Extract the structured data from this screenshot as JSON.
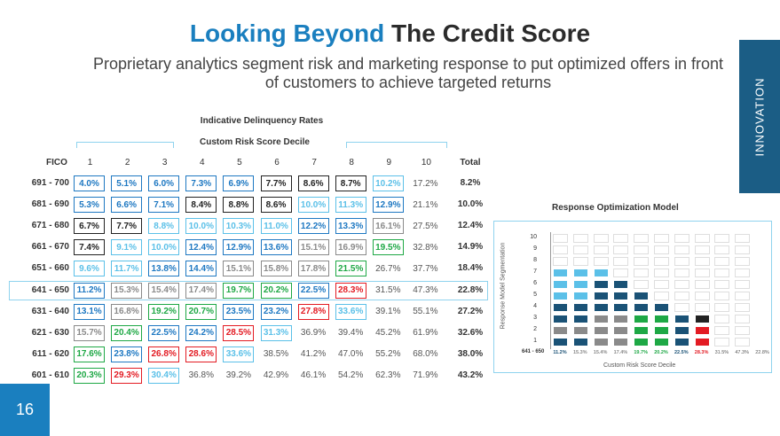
{
  "title": {
    "part1": "Looking Beyond",
    "part2": "The Credit Score"
  },
  "subtitle": "Proprietary analytics segment risk and marketing response to put optimized offers in front of customers to achieve targeted returns",
  "side_tab": "INNOVATION",
  "page_number": "16",
  "colors": {
    "dark_navy": "#1a5276",
    "blue": "#1e78c2",
    "light_blue": "#5bc0e8",
    "black": "#222222",
    "gray": "#8a8a8a",
    "green": "#1ea845",
    "red": "#e31b23",
    "plain": "#555555"
  },
  "table": {
    "heading": "Indicative Delinquency Rates",
    "subheading": "Custom Risk Score Decile",
    "fico_label": "FICO",
    "total_label": "Total",
    "columns": [
      "1",
      "2",
      "3",
      "4",
      "5",
      "6",
      "7",
      "8",
      "9",
      "10"
    ],
    "rows": [
      {
        "fico": "691 - 700",
        "total": "8.2%",
        "cells": [
          [
            "4.0%",
            "blue"
          ],
          [
            "5.1%",
            "blue"
          ],
          [
            "6.0%",
            "blue"
          ],
          [
            "7.3%",
            "blue"
          ],
          [
            "6.9%",
            "blue"
          ],
          [
            "7.7%",
            "black"
          ],
          [
            "8.6%",
            "black"
          ],
          [
            "8.7%",
            "black"
          ],
          [
            "10.2%",
            "light_blue"
          ],
          [
            "17.2%",
            "plain"
          ]
        ]
      },
      {
        "fico": "681 - 690",
        "total": "10.0%",
        "cells": [
          [
            "5.3%",
            "blue"
          ],
          [
            "6.6%",
            "blue"
          ],
          [
            "7.1%",
            "blue"
          ],
          [
            "8.4%",
            "black"
          ],
          [
            "8.8%",
            "black"
          ],
          [
            "8.6%",
            "black"
          ],
          [
            "10.0%",
            "light_blue"
          ],
          [
            "11.3%",
            "light_blue"
          ],
          [
            "12.9%",
            "blue"
          ],
          [
            "21.1%",
            "plain"
          ]
        ]
      },
      {
        "fico": "671 - 680",
        "total": "12.4%",
        "cells": [
          [
            "6.7%",
            "black"
          ],
          [
            "7.7%",
            "black"
          ],
          [
            "8.8%",
            "light_blue"
          ],
          [
            "10.0%",
            "light_blue"
          ],
          [
            "10.3%",
            "light_blue"
          ],
          [
            "11.0%",
            "light_blue"
          ],
          [
            "12.2%",
            "blue"
          ],
          [
            "13.3%",
            "blue"
          ],
          [
            "16.1%",
            "gray"
          ],
          [
            "27.5%",
            "plain"
          ]
        ]
      },
      {
        "fico": "661 - 670",
        "total": "14.9%",
        "cells": [
          [
            "7.4%",
            "black"
          ],
          [
            "9.1%",
            "light_blue"
          ],
          [
            "10.0%",
            "light_blue"
          ],
          [
            "12.4%",
            "blue"
          ],
          [
            "12.9%",
            "blue"
          ],
          [
            "13.6%",
            "blue"
          ],
          [
            "15.1%",
            "gray"
          ],
          [
            "16.9%",
            "gray"
          ],
          [
            "19.5%",
            "green"
          ],
          [
            "32.8%",
            "plain"
          ]
        ]
      },
      {
        "fico": "651 - 660",
        "total": "18.4%",
        "cells": [
          [
            "9.6%",
            "light_blue"
          ],
          [
            "11.7%",
            "light_blue"
          ],
          [
            "13.8%",
            "blue"
          ],
          [
            "14.4%",
            "blue"
          ],
          [
            "15.1%",
            "gray"
          ],
          [
            "15.8%",
            "gray"
          ],
          [
            "17.8%",
            "gray"
          ],
          [
            "21.5%",
            "green"
          ],
          [
            "26.7%",
            "plain"
          ],
          [
            "37.7%",
            "plain"
          ]
        ]
      },
      {
        "fico": "641 - 650",
        "total": "22.8%",
        "cells": [
          [
            "11.2%",
            "blue"
          ],
          [
            "15.3%",
            "gray"
          ],
          [
            "15.4%",
            "gray"
          ],
          [
            "17.4%",
            "gray"
          ],
          [
            "19.7%",
            "green"
          ],
          [
            "20.2%",
            "green"
          ],
          [
            "22.5%",
            "blue"
          ],
          [
            "28.3%",
            "red"
          ],
          [
            "31.5%",
            "plain"
          ],
          [
            "47.3%",
            "plain"
          ]
        ]
      },
      {
        "fico": "631 - 640",
        "total": "27.2%",
        "cells": [
          [
            "13.1%",
            "blue"
          ],
          [
            "16.8%",
            "gray"
          ],
          [
            "19.2%",
            "green"
          ],
          [
            "20.7%",
            "green"
          ],
          [
            "23.5%",
            "blue"
          ],
          [
            "23.2%",
            "blue"
          ],
          [
            "27.8%",
            "red"
          ],
          [
            "33.6%",
            "light_blue"
          ],
          [
            "39.1%",
            "plain"
          ],
          [
            "55.1%",
            "plain"
          ]
        ]
      },
      {
        "fico": "621 - 630",
        "total": "32.6%",
        "cells": [
          [
            "15.7%",
            "gray"
          ],
          [
            "20.4%",
            "green"
          ],
          [
            "22.5%",
            "blue"
          ],
          [
            "24.2%",
            "blue"
          ],
          [
            "28.5%",
            "red"
          ],
          [
            "31.3%",
            "light_blue"
          ],
          [
            "36.9%",
            "plain"
          ],
          [
            "39.4%",
            "plain"
          ],
          [
            "45.2%",
            "plain"
          ],
          [
            "61.9%",
            "plain"
          ]
        ]
      },
      {
        "fico": "611 - 620",
        "total": "38.0%",
        "cells": [
          [
            "17.6%",
            "green"
          ],
          [
            "23.8%",
            "blue"
          ],
          [
            "26.8%",
            "red"
          ],
          [
            "28.6%",
            "red"
          ],
          [
            "33.6%",
            "light_blue"
          ],
          [
            "38.5%",
            "plain"
          ],
          [
            "41.2%",
            "plain"
          ],
          [
            "47.0%",
            "plain"
          ],
          [
            "55.2%",
            "plain"
          ],
          [
            "68.0%",
            "plain"
          ]
        ]
      },
      {
        "fico": "601 - 610",
        "total": "43.2%",
        "cells": [
          [
            "20.3%",
            "green"
          ],
          [
            "29.3%",
            "red"
          ],
          [
            "30.4%",
            "light_blue"
          ],
          [
            "36.8%",
            "plain"
          ],
          [
            "39.2%",
            "plain"
          ],
          [
            "42.9%",
            "plain"
          ],
          [
            "46.1%",
            "plain"
          ],
          [
            "54.2%",
            "plain"
          ],
          [
            "62.3%",
            "plain"
          ],
          [
            "71.9%",
            "plain"
          ]
        ]
      }
    ]
  },
  "response_model": {
    "title": "Response Optimization Model",
    "y_label": "Response Model Segmentation",
    "x_label": "Custom Risk Score Decile",
    "row_label": "641 - 650",
    "y_ticks": [
      "10",
      "9",
      "8",
      "7",
      "6",
      "5",
      "4",
      "3",
      "2",
      "1"
    ],
    "x_values": [
      "11.2%",
      "15.3%",
      "15.4%",
      "17.4%",
      "19.7%",
      "20.2%",
      "22.5%",
      "28.3%",
      "31.5%",
      "47.3%",
      "22.8%"
    ],
    "x_value_colors": [
      "dark_navy",
      "gray",
      "gray",
      "gray",
      "green",
      "green",
      "dark_navy",
      "red",
      "plain",
      "plain",
      "plain"
    ],
    "column_fills": [
      [
        "dark_navy",
        "gray",
        "dark_navy",
        "dark_navy",
        "light_blue",
        "light_blue",
        "light_blue"
      ],
      [
        "dark_navy",
        "gray",
        "dark_navy",
        "dark_navy",
        "light_blue",
        "light_blue",
        "light_blue"
      ],
      [
        "gray",
        "gray",
        "gray",
        "dark_navy",
        "dark_navy",
        "dark_navy",
        "light_blue"
      ],
      [
        "gray",
        "gray",
        "gray",
        "dark_navy",
        "dark_navy",
        "dark_navy"
      ],
      [
        "green",
        "green",
        "green",
        "dark_navy",
        "dark_navy"
      ],
      [
        "green",
        "green",
        "green",
        "dark_navy"
      ],
      [
        "dark_navy",
        "dark_navy",
        "dark_navy"
      ],
      [
        "red",
        "red",
        "black"
      ],
      [],
      []
    ]
  }
}
